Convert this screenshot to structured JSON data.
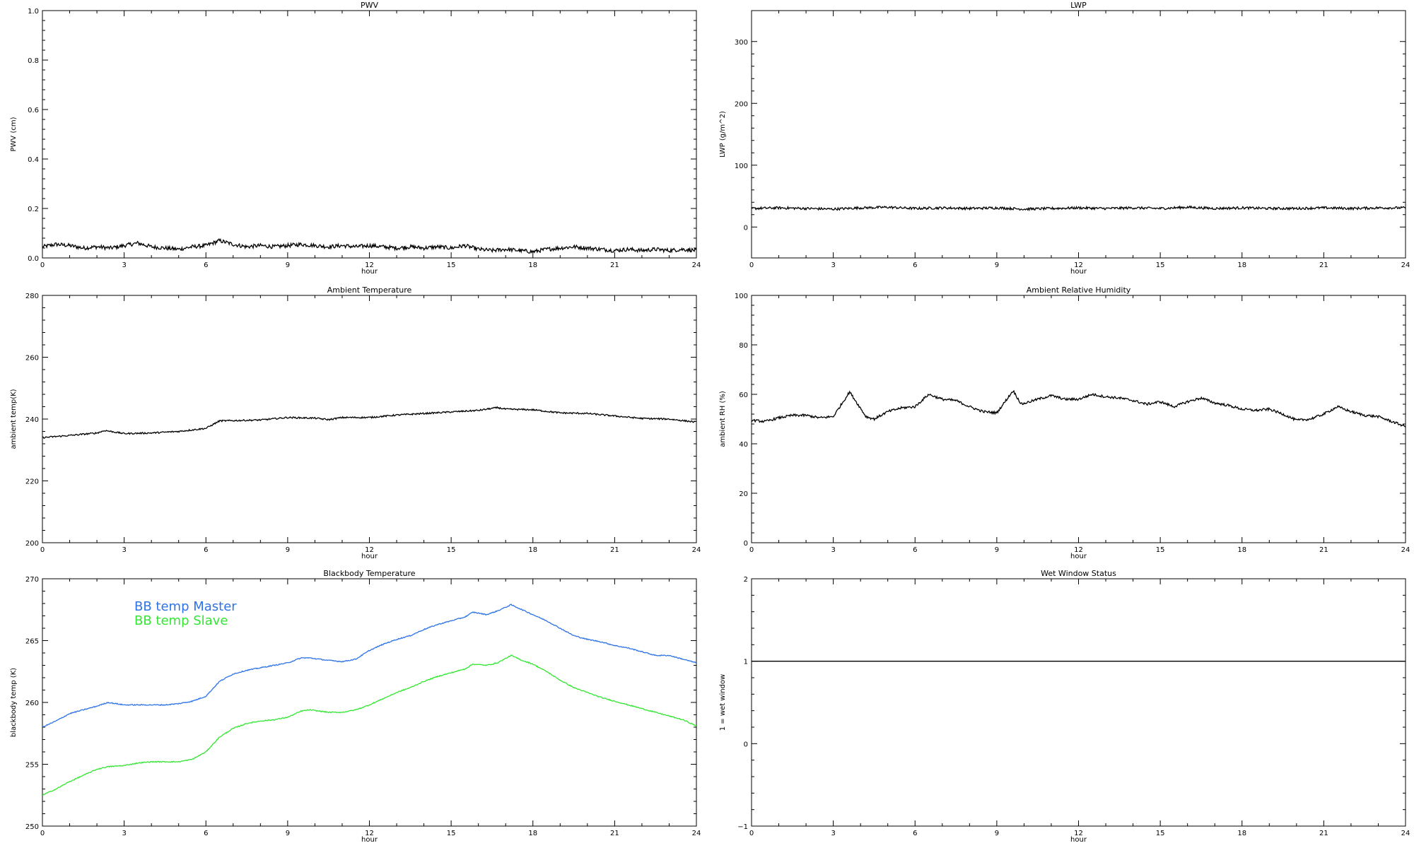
{
  "chart_data": [
    {
      "type": "line",
      "title": "PWV",
      "xlabel": "hour",
      "ylabel": "PWV (cm)",
      "xlim": [
        0,
        24
      ],
      "ylim": [
        0,
        1
      ],
      "x_ticks": [
        0,
        3,
        6,
        9,
        12,
        15,
        18,
        21,
        24
      ],
      "y_ticks": [
        0.0,
        0.2,
        0.4,
        0.6,
        0.8,
        1.0
      ],
      "y_tick_labels": [
        "0.0",
        "0.2",
        "0.4",
        "0.6",
        "0.8",
        "1.0"
      ],
      "noise": 0.008,
      "series": [
        {
          "color": "#000000",
          "x": [
            0,
            0.5,
            1,
            1.5,
            2,
            2.5,
            3,
            3.5,
            4,
            4.5,
            5,
            5.5,
            6,
            6.5,
            7,
            7.5,
            8,
            8.5,
            9,
            9.5,
            10,
            10.5,
            11,
            11.5,
            12,
            12.5,
            13,
            13.5,
            14,
            14.5,
            15,
            15.5,
            16,
            16.5,
            17,
            17.5,
            18,
            18.5,
            19,
            19.5,
            20,
            20.5,
            21,
            21.5,
            22,
            22.5,
            23,
            23.5,
            24
          ],
          "values": [
            0.045,
            0.055,
            0.05,
            0.04,
            0.045,
            0.04,
            0.05,
            0.06,
            0.045,
            0.04,
            0.035,
            0.045,
            0.05,
            0.07,
            0.055,
            0.045,
            0.05,
            0.045,
            0.05,
            0.055,
            0.05,
            0.045,
            0.05,
            0.045,
            0.05,
            0.045,
            0.04,
            0.045,
            0.04,
            0.045,
            0.04,
            0.05,
            0.035,
            0.03,
            0.035,
            0.03,
            0.025,
            0.035,
            0.04,
            0.045,
            0.04,
            0.035,
            0.03,
            0.035,
            0.03,
            0.035,
            0.03,
            0.035,
            0.03
          ]
        }
      ]
    },
    {
      "type": "line",
      "title": "LWP",
      "xlabel": "hour",
      "ylabel": "LWP (g/m^2)",
      "xlim": [
        0,
        24
      ],
      "ylim": [
        -50,
        350
      ],
      "x_ticks": [
        0,
        3,
        6,
        9,
        12,
        15,
        18,
        21,
        24
      ],
      "y_ticks": [
        0,
        100,
        200,
        300
      ],
      "y_tick_labels": [
        "0",
        "100",
        "200",
        "300"
      ],
      "noise": 2,
      "series": [
        {
          "color": "#000000",
          "x": [
            0,
            1,
            2,
            3,
            4,
            5,
            6,
            7,
            8,
            9,
            10,
            11,
            12,
            13,
            14,
            15,
            16,
            17,
            18,
            19,
            20,
            21,
            22,
            23,
            24
          ],
          "values": [
            30,
            31,
            30,
            29,
            31,
            32,
            30,
            31,
            30,
            31,
            29,
            30,
            31,
            30,
            31,
            30,
            32,
            30,
            31,
            30,
            30,
            31,
            30,
            31,
            31
          ]
        }
      ]
    },
    {
      "type": "line",
      "title": "Ambient Temperature",
      "xlabel": "hour",
      "ylabel": "ambient temp(K)",
      "xlim": [
        0,
        24
      ],
      "ylim": [
        200,
        280
      ],
      "x_ticks": [
        0,
        3,
        6,
        9,
        12,
        15,
        18,
        21,
        24
      ],
      "y_ticks": [
        200,
        220,
        240,
        260,
        280
      ],
      "y_tick_labels": [
        "200",
        "220",
        "240",
        "260",
        "280"
      ],
      "noise": 0.25,
      "series": [
        {
          "color": "#000000",
          "x": [
            0,
            1,
            2,
            2.3,
            3,
            4,
            5,
            6,
            6.5,
            7,
            8,
            9,
            10,
            10.5,
            11,
            12,
            13,
            14,
            15,
            16,
            16.7,
            17,
            18,
            19,
            20,
            21,
            22,
            23,
            24
          ],
          "values": [
            234,
            234.7,
            235.5,
            236.3,
            235.3,
            235.5,
            236,
            237,
            239.4,
            239.5,
            239.7,
            240.5,
            240.3,
            239.8,
            240.5,
            240.5,
            241.3,
            241.8,
            242.3,
            242.8,
            243.7,
            243.2,
            243,
            242,
            241.8,
            241,
            240.2,
            240,
            239
          ]
        }
      ]
    },
    {
      "type": "line",
      "title": "Ambient Relative Humidity",
      "xlabel": "hour",
      "ylabel": "ambient RH (%)",
      "xlim": [
        0,
        24
      ],
      "ylim": [
        0,
        100
      ],
      "x_ticks": [
        0,
        3,
        6,
        9,
        12,
        15,
        18,
        21,
        24
      ],
      "y_ticks": [
        0,
        20,
        40,
        60,
        80,
        100
      ],
      "y_tick_labels": [
        "0",
        "20",
        "40",
        "60",
        "80",
        "100"
      ],
      "noise": 0.5,
      "series": [
        {
          "color": "#000000",
          "x": [
            0,
            0.5,
            1,
            1.5,
            2,
            2.5,
            3,
            3.3,
            3.6,
            3.9,
            4.2,
            4.5,
            5,
            5.5,
            6,
            6.3,
            6.5,
            7,
            7.5,
            8,
            8.5,
            9,
            9.3,
            9.6,
            9.9,
            10.2,
            10.5,
            11,
            11.5,
            12,
            12.5,
            13,
            13.5,
            14,
            14.5,
            15,
            15.5,
            16,
            16.5,
            17,
            17.5,
            18,
            18.5,
            19,
            19.5,
            20,
            20.5,
            21,
            21.5,
            22,
            22.5,
            23,
            23.5,
            24
          ],
          "values": [
            49.5,
            49,
            50.5,
            51.5,
            51.5,
            50.5,
            51,
            56,
            61,
            56,
            51,
            50,
            53,
            54.5,
            55,
            58,
            60,
            58,
            57.5,
            55,
            53,
            52.5,
            57,
            61.5,
            56,
            57,
            58,
            59.5,
            58,
            58,
            60,
            59,
            58.5,
            57.5,
            56,
            57,
            55,
            57,
            58.5,
            56.5,
            55.5,
            54,
            53.5,
            54,
            52,
            49.5,
            50,
            52,
            55,
            53,
            51.5,
            51,
            49,
            47
          ]
        }
      ]
    },
    {
      "type": "line",
      "title": "Blackbody Temperature",
      "xlabel": "hour",
      "ylabel": "blackbody temp (K)",
      "xlim": [
        0,
        24
      ],
      "ylim": [
        250,
        270
      ],
      "x_ticks": [
        0,
        3,
        6,
        9,
        12,
        15,
        18,
        21,
        24
      ],
      "y_ticks": [
        250,
        255,
        260,
        265,
        270
      ],
      "y_tick_labels": [
        "250",
        "255",
        "260",
        "265",
        "270"
      ],
      "noise": 0.04,
      "series": [
        {
          "name": "BB temp Master",
          "color": "#2d73e6",
          "x": [
            0,
            0.5,
            1,
            1.5,
            2,
            2.4,
            3,
            3.5,
            4,
            4.5,
            5,
            5.5,
            6,
            6.5,
            7,
            7.5,
            8,
            8.5,
            9,
            9.5,
            9.8,
            10.5,
            11,
            11.5,
            12,
            12.5,
            13,
            13.5,
            14,
            14.5,
            15,
            15.5,
            15.8,
            16.3,
            16.7,
            17.2,
            17.6,
            18,
            18.5,
            19,
            19.5,
            20,
            20.5,
            21,
            21.5,
            22,
            22.5,
            23,
            23.5,
            24
          ],
          "values": [
            258,
            258.5,
            259.1,
            259.4,
            259.7,
            260,
            259.8,
            259.8,
            259.8,
            259.8,
            259.9,
            260.1,
            260.5,
            261.7,
            262.3,
            262.6,
            262.8,
            263,
            263.2,
            263.6,
            263.6,
            263.4,
            263.3,
            263.5,
            264.2,
            264.7,
            265.1,
            265.4,
            265.9,
            266.3,
            266.6,
            266.9,
            267.3,
            267.1,
            267.4,
            267.9,
            267.5,
            267.1,
            266.6,
            266,
            265.4,
            265.1,
            264.9,
            264.6,
            264.4,
            264.1,
            263.8,
            263.8,
            263.5,
            263.2
          ]
        },
        {
          "name": "BB temp Slave",
          "color": "#33e633",
          "x": [
            0,
            0.5,
            1,
            1.5,
            2,
            2.4,
            3,
            3.5,
            4,
            4.5,
            5,
            5.5,
            6,
            6.5,
            7,
            7.5,
            8,
            8.5,
            9,
            9.5,
            9.8,
            10.5,
            11,
            11.5,
            12,
            12.5,
            13,
            13.5,
            14,
            14.5,
            15,
            15.5,
            15.8,
            16.3,
            16.7,
            17.2,
            17.6,
            18,
            18.5,
            19,
            19.5,
            20,
            20.5,
            21,
            21.5,
            22,
            22.5,
            23,
            23.5,
            24
          ],
          "values": [
            252.5,
            253,
            253.6,
            254.1,
            254.6,
            254.8,
            254.9,
            255.1,
            255.2,
            255.2,
            255.2,
            255.4,
            256,
            257.2,
            257.9,
            258.3,
            258.5,
            258.6,
            258.8,
            259.3,
            259.4,
            259.2,
            259.2,
            259.4,
            259.8,
            260.3,
            260.8,
            261.2,
            261.7,
            262.1,
            262.4,
            262.7,
            263.1,
            263,
            263.2,
            263.8,
            263.4,
            263.1,
            262.5,
            261.8,
            261.2,
            260.8,
            260.4,
            260.1,
            259.8,
            259.5,
            259.2,
            258.9,
            258.6,
            258.1
          ]
        }
      ]
    },
    {
      "type": "line",
      "title": "Wet Window Status",
      "xlabel": "hour",
      "ylabel": "1 = wet window",
      "xlim": [
        0,
        24
      ],
      "ylim": [
        -1,
        2
      ],
      "x_ticks": [
        0,
        3,
        6,
        9,
        12,
        15,
        18,
        21,
        24
      ],
      "y_ticks": [
        -1,
        0,
        1,
        2
      ],
      "y_tick_labels": [
        "−1",
        "0",
        "1",
        "2"
      ],
      "noise": 0,
      "series": [
        {
          "color": "#000000",
          "x": [
            0,
            24
          ],
          "values": [
            1,
            1
          ]
        }
      ]
    }
  ]
}
